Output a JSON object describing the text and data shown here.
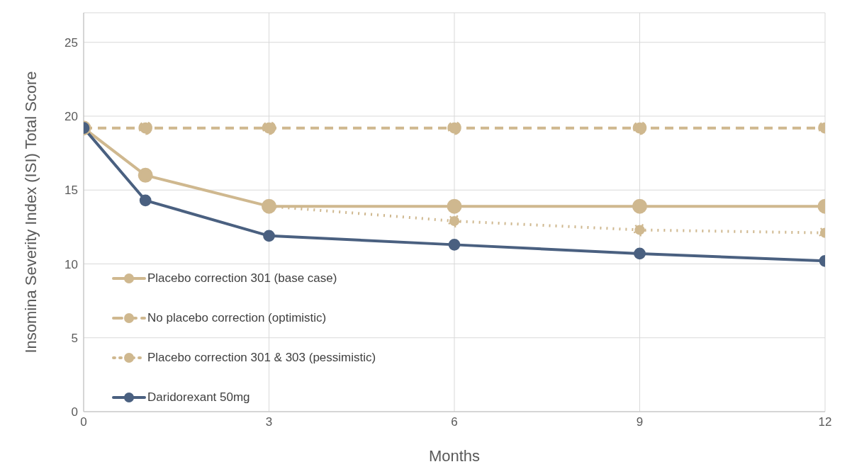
{
  "chart_data": {
    "type": "line",
    "xlabel": "Months",
    "ylabel": "Insomina Severity Index (ISI) Total Score",
    "xlim": [
      0,
      12
    ],
    "xticks": [
      0,
      3,
      6,
      9,
      12
    ],
    "ylim": [
      0,
      27
    ],
    "yticks": [
      0,
      5,
      10,
      15,
      20,
      25
    ],
    "grid": true,
    "legend": "bottom left",
    "marker": "circle",
    "series": [
      {
        "name": "Placebo correction 301 (base case)",
        "color": "#cfb88f",
        "line_style": "solid",
        "x": [
          0,
          1,
          3,
          6,
          9,
          12
        ],
        "values": [
          19.2,
          16.0,
          13.9,
          13.9,
          13.9,
          13.9
        ]
      },
      {
        "name": "No placebo correction (optimistic)",
        "color": "#cfb88f",
        "line_style": "dashed",
        "x": [
          0,
          1,
          3,
          6,
          9,
          12
        ],
        "values": [
          19.2,
          19.2,
          19.2,
          19.2,
          19.2,
          19.2
        ]
      },
      {
        "name": "Placebo correction 301 & 303 (pessimistic)",
        "color": "#cfb88f",
        "line_style": "dotted",
        "x": [
          3,
          6,
          9,
          12
        ],
        "values": [
          13.9,
          12.9,
          12.3,
          12.1
        ]
      },
      {
        "name": "Daridorexant 50mg",
        "color": "#4a6080",
        "line_style": "solid",
        "x": [
          0,
          1,
          3,
          6,
          9,
          12
        ],
        "values": [
          19.2,
          14.3,
          11.9,
          11.3,
          10.7,
          10.2
        ]
      }
    ]
  }
}
